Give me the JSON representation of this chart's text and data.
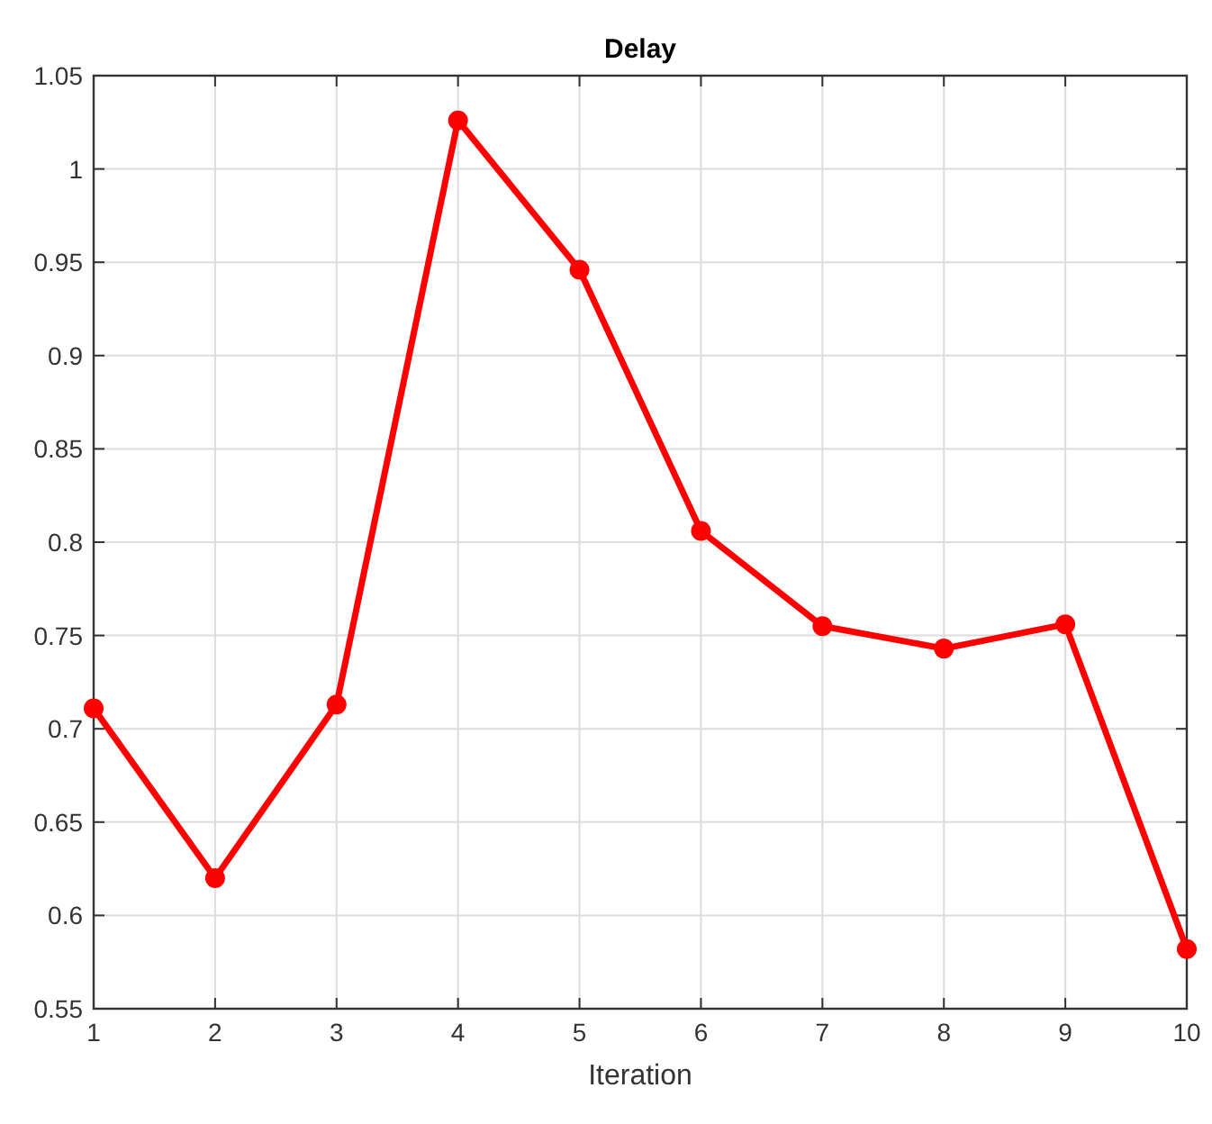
{
  "chart_data": {
    "type": "line",
    "title": "Delay",
    "xlabel": "Iteration",
    "x": [
      1,
      2,
      3,
      4,
      5,
      6,
      7,
      8,
      9,
      10
    ],
    "series": [
      {
        "color": "#ff0000",
        "values": [
          0.711,
          0.62,
          0.713,
          1.026,
          0.946,
          0.806,
          0.755,
          0.743,
          0.756,
          0.582
        ]
      }
    ],
    "xlim": [
      1,
      10
    ],
    "xticks": [
      1,
      2,
      3,
      4,
      5,
      6,
      7,
      8,
      9,
      10
    ],
    "ylim": [
      0.55,
      1.05
    ],
    "yticks": [
      0.55,
      0.6,
      0.65,
      0.7,
      0.75,
      0.8,
      0.85,
      0.9,
      0.95,
      1,
      1.05
    ],
    "grid": true,
    "marker": "circle",
    "line_style": "solid"
  }
}
